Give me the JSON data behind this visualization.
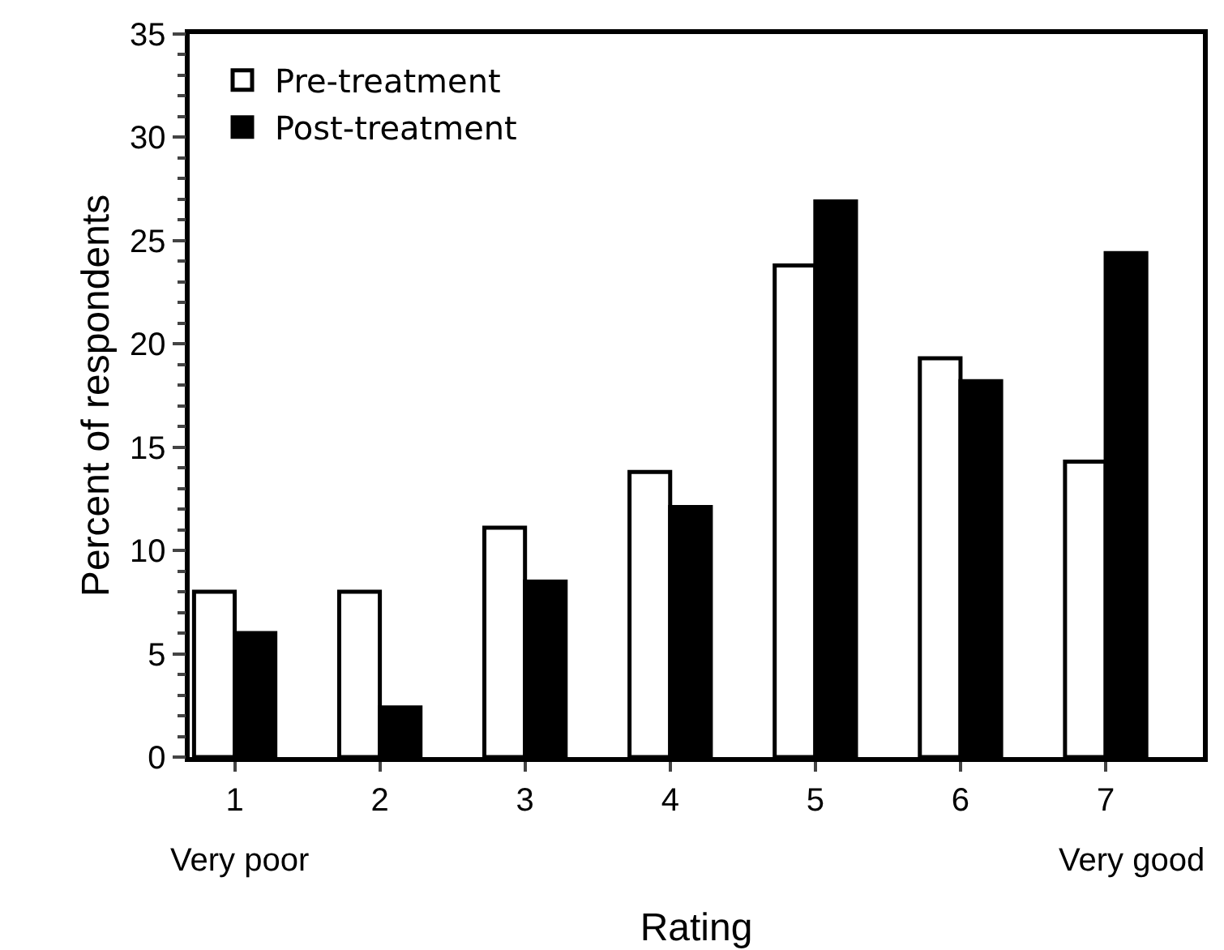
{
  "chart_data": {
    "type": "bar",
    "xlabel": "Rating",
    "ylabel": "Percent of respondents",
    "categories": [
      "1",
      "2",
      "3",
      "4",
      "5",
      "6",
      "7"
    ],
    "series": [
      {
        "name": "Pre-treatment",
        "color": "#ffffff",
        "values": [
          8.0,
          8.0,
          11.1,
          13.8,
          23.8,
          19.3,
          14.3
        ]
      },
      {
        "name": "Post-treatment",
        "color": "#000000",
        "values": [
          6.0,
          2.4,
          8.5,
          12.1,
          26.9,
          18.2,
          24.4
        ]
      }
    ],
    "ylim": [
      0,
      35
    ],
    "yticks": [
      0,
      5,
      10,
      15,
      20,
      25,
      30,
      35
    ],
    "annotations": [
      "Very poor",
      "Very good"
    ],
    "legend": "top left"
  }
}
